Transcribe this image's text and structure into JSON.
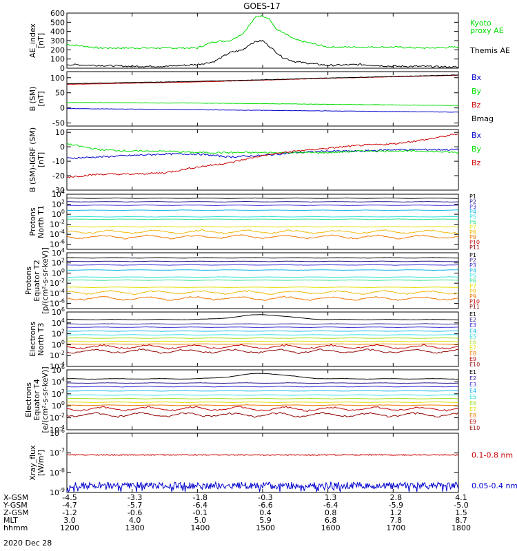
{
  "page": {
    "title": "GOES-17",
    "date_label": "2020 Dec 28",
    "ephemeris": {
      "rows": [
        {
          "label": "X-GSM",
          "values": [
            "-4.5",
            "-3.3",
            "-1.8",
            "-0.3",
            "1.3",
            "2.8",
            "4.1"
          ]
        },
        {
          "label": "Y-GSM",
          "values": [
            "-4.7",
            "-5.7",
            "-6.4",
            "-6.6",
            "-6.4",
            "-5.9",
            "-5.0"
          ]
        },
        {
          "label": "Z-GSM",
          "values": [
            "-1.2",
            "-0.6",
            "-0.1",
            "0.4",
            "0.8",
            "1.2",
            "1.5"
          ]
        },
        {
          "label": "MLT",
          "values": [
            "3.0",
            "4.0",
            "5.0",
            "5.9",
            "6.8",
            "7.8",
            "8.7"
          ]
        },
        {
          "label": "hhmm",
          "values": [
            "1200",
            "1300",
            "1400",
            "1500",
            "1600",
            "1700",
            "1800"
          ]
        }
      ]
    }
  },
  "colors": {
    "black": "#000000",
    "green": "#00dd00",
    "blue": "#0000cc",
    "red": "#cc0000",
    "navy": "#2a1f8f",
    "indigo": "#3b2fd6",
    "deep_blue": "#2030e0",
    "cyan": "#10b8e8",
    "aqua": "#30e0e0",
    "spring": "#30e090",
    "lime": "#a0e020",
    "yellow": "#e0e000",
    "gold": "#f0b800",
    "orange": "#f07800",
    "crimson": "#c00000",
    "maroon": "#900000"
  },
  "chart_data": [
    {
      "type": "line",
      "ylabel": "AE_index\n[nT]",
      "ylim": [
        0,
        600
      ],
      "yticks": [
        0,
        100,
        200,
        300,
        400,
        500,
        600
      ],
      "yscale": "linear",
      "x": [
        12.0,
        12.5,
        13.0,
        13.5,
        14.0,
        14.25,
        14.5,
        14.7,
        14.8,
        14.9,
        15.0,
        15.1,
        15.2,
        15.3,
        15.5,
        16.0,
        16.5,
        17.0,
        17.5,
        18.0
      ],
      "series": [
        {
          "name": "Kyoto\nproxy AE",
          "color": "#00dd00",
          "values": [
            260,
            220,
            220,
            220,
            220,
            290,
            300,
            380,
            470,
            560,
            570,
            540,
            430,
            390,
            310,
            230,
            230,
            230,
            220,
            230
          ]
        },
        {
          "name": "Themis AE",
          "color": "#000000",
          "values": [
            40,
            30,
            20,
            20,
            40,
            70,
            170,
            200,
            260,
            290,
            300,
            240,
            180,
            120,
            70,
            30,
            40,
            20,
            20,
            10
          ]
        }
      ]
    },
    {
      "type": "line",
      "ylabel": "B (SM)\n[nT]",
      "ylim": [
        -60,
        120
      ],
      "yticks": [
        -50,
        0,
        50,
        100
      ],
      "yscale": "linear",
      "x": [
        12.0,
        13.0,
        14.0,
        15.0,
        16.0,
        17.0,
        18.0
      ],
      "series": [
        {
          "name": "Bx",
          "color": "#0000cc",
          "values": [
            -2,
            -4,
            -6,
            -8,
            -10,
            -12,
            -14
          ]
        },
        {
          "name": "By",
          "color": "#00dd00",
          "values": [
            18,
            17,
            16,
            14,
            12,
            10,
            8
          ]
        },
        {
          "name": "Bz",
          "color": "#cc0000",
          "values": [
            78,
            82,
            86,
            92,
            98,
            103,
            108
          ]
        },
        {
          "name": "Bmag",
          "color": "#000000",
          "values": [
            80,
            84,
            88,
            93,
            99,
            104,
            109
          ]
        }
      ]
    },
    {
      "type": "line",
      "ylabel": "B (SM)-IGRF (SM)\n[nT]",
      "ylim": [
        -30,
        12
      ],
      "yticks": [
        -30,
        -20,
        -10,
        0,
        10
      ],
      "yscale": "linear",
      "x": [
        12.0,
        12.5,
        13.0,
        13.5,
        14.0,
        14.5,
        15.0,
        15.5,
        16.0,
        16.5,
        17.0,
        17.5,
        18.0
      ],
      "series": [
        {
          "name": "Bx",
          "color": "#0000cc",
          "values": [
            -8,
            -7,
            -6,
            -5,
            -5,
            -7,
            -6,
            -4,
            -3,
            -3,
            -2,
            -2,
            -2
          ]
        },
        {
          "name": "By",
          "color": "#00dd00",
          "values": [
            2,
            -2,
            -3,
            -3,
            -4,
            -4,
            -4,
            -4,
            -4,
            -3,
            -3,
            -3,
            -4
          ]
        },
        {
          "name": "Bz",
          "color": "#cc0000",
          "values": [
            -21,
            -19,
            -19,
            -18,
            -14,
            -11,
            -6,
            -3,
            -1,
            1,
            2,
            5,
            9
          ]
        }
      ]
    },
    {
      "type": "line",
      "ylabel": "Protons\nNorth T1",
      "ylim": [
        -7,
        4
      ],
      "yticks": [
        -6,
        -4,
        -2,
        0,
        2,
        4
      ],
      "yscale": "log",
      "levels": [
        3.2,
        2.5,
        1.8,
        0.8,
        -0.5,
        -1.0,
        -2.5,
        -3.5,
        -4.5
      ],
      "series": [
        {
          "name": "P1",
          "color": "#000000"
        },
        {
          "name": "P2",
          "color": "#2a1f8f"
        },
        {
          "name": "P3",
          "color": "#3b2fd6"
        },
        {
          "name": "P4",
          "color": "#10b8e8"
        },
        {
          "name": "P5",
          "color": "#30e0e0"
        },
        {
          "name": "P6",
          "color": "#30e090"
        },
        {
          "name": "P7",
          "color": "#e0e000"
        },
        {
          "name": "P8",
          "color": "#f0b800"
        },
        {
          "name": "P9",
          "color": "#f07800"
        },
        {
          "name": "P10",
          "color": "#c00000"
        },
        {
          "name": "P11",
          "color": "#900000"
        }
      ]
    },
    {
      "type": "line",
      "ylabel": "Protons\nEquator T2\n[p/(cm²-s-sr-keV)]",
      "ylim": [
        -7,
        4
      ],
      "yticks": [
        -6,
        -4,
        -2,
        0,
        2,
        4
      ],
      "yscale": "log",
      "levels": [
        3.0,
        2.3,
        1.6,
        0.6,
        -0.8,
        -1.4,
        -2.8,
        -3.8,
        -5.0
      ],
      "series": [
        {
          "name": "P1",
          "color": "#000000"
        },
        {
          "name": "P2",
          "color": "#2a1f8f"
        },
        {
          "name": "P3",
          "color": "#3b2fd6"
        },
        {
          "name": "P4",
          "color": "#10b8e8"
        },
        {
          "name": "P5",
          "color": "#30e0e0"
        },
        {
          "name": "P6",
          "color": "#30e090"
        },
        {
          "name": "P7",
          "color": "#e0e000"
        },
        {
          "name": "P8",
          "color": "#f0b800"
        },
        {
          "name": "P9",
          "color": "#f07800"
        },
        {
          "name": "P10",
          "color": "#c00000"
        },
        {
          "name": "P11",
          "color": "#900000"
        }
      ]
    },
    {
      "type": "line",
      "ylabel": "Electrons\nNorth T3",
      "ylim": [
        -4,
        6
      ],
      "yticks": [
        -4,
        -2,
        0,
        2,
        4,
        6
      ],
      "yscale": "log",
      "levels": [
        4.6,
        3.8,
        3.2,
        2.5,
        1.8,
        1.2,
        0.6,
        0.1,
        -0.4,
        -1.2
      ],
      "series": [
        {
          "name": "E1",
          "color": "#000000"
        },
        {
          "name": "E2",
          "color": "#2a1f8f"
        },
        {
          "name": "E3",
          "color": "#3b2fd6"
        },
        {
          "name": "E4",
          "color": "#10b8e8"
        },
        {
          "name": "E5",
          "color": "#30e0e0"
        },
        {
          "name": "E6",
          "color": "#a0e020"
        },
        {
          "name": "E7",
          "color": "#e0e000"
        },
        {
          "name": "E8",
          "color": "#f07800"
        },
        {
          "name": "E9",
          "color": "#c00000"
        },
        {
          "name": "E10",
          "color": "#900000"
        }
      ]
    },
    {
      "type": "line",
      "ylabel": "Electrons\nEquator T4\n[e/(cm²-s-sr-keV)]",
      "ylim": [
        -4,
        6
      ],
      "yticks": [
        -4,
        -2,
        0,
        2,
        4,
        6
      ],
      "yscale": "log",
      "levels": [
        4.5,
        3.8,
        3.2,
        2.5,
        1.8,
        1.2,
        0.6,
        0.1,
        -0.5,
        -1.5
      ],
      "series": [
        {
          "name": "E1",
          "color": "#000000"
        },
        {
          "name": "E2",
          "color": "#2a1f8f"
        },
        {
          "name": "E3",
          "color": "#3b2fd6"
        },
        {
          "name": "E4",
          "color": "#10b8e8"
        },
        {
          "name": "E5",
          "color": "#30e0e0"
        },
        {
          "name": "E6",
          "color": "#a0e020"
        },
        {
          "name": "E7",
          "color": "#e0e000"
        },
        {
          "name": "E8",
          "color": "#f07800"
        },
        {
          "name": "E9",
          "color": "#c00000"
        },
        {
          "name": "E10",
          "color": "#900000"
        }
      ]
    },
    {
      "type": "line",
      "ylabel": "Xray_flux\n[W/m²]",
      "ylim": [
        -9,
        -6
      ],
      "yticks": [
        -9,
        -8,
        -7,
        -6
      ],
      "yscale": "log",
      "series": [
        {
          "name": "0.1-0.8 nm",
          "color": "#cc0000",
          "level": -7.1
        },
        {
          "name": "0.05-0.4 nm",
          "color": "#0000cc",
          "level": -8.65
        }
      ]
    }
  ]
}
